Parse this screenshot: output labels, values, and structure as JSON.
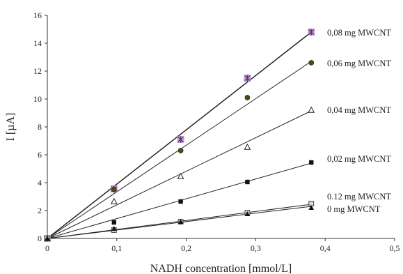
{
  "chart_data": {
    "type": "scatter",
    "xlabel": "NADH concentration [mmol/L]",
    "ylabel": "I [µA]",
    "xlim": [
      0,
      0.5
    ],
    "ylim": [
      0,
      16
    ],
    "xticks": [
      "0",
      "0,1",
      "0,2",
      "0,3",
      "0,4",
      "0,5"
    ],
    "yticks": [
      "0",
      "2",
      "4",
      "6",
      "8",
      "10",
      "12",
      "14",
      "16"
    ],
    "grid": false,
    "series": [
      {
        "name": "0,08 mg MWCNT",
        "marker": "star-square",
        "color": "#b58fc8",
        "line_width": 1.5,
        "x": [
          0,
          0.096,
          0.192,
          0.288,
          0.38
        ],
        "y": [
          0,
          3.55,
          7.1,
          11.5,
          14.8
        ],
        "fit_end": [
          0.38,
          14.8
        ]
      },
      {
        "name": "0,06 mg MWCNT",
        "marker": "circle",
        "color": "#4a4a1e",
        "line_width": 1,
        "x": [
          0,
          0.096,
          0.192,
          0.288,
          0.38
        ],
        "y": [
          0,
          3.5,
          6.3,
          10.1,
          12.6
        ],
        "fit_end": [
          0.38,
          12.7
        ]
      },
      {
        "name": "0,04 mg MWCNT",
        "marker": "triangle-open",
        "color": "#222222",
        "line_width": 1,
        "x": [
          0,
          0.096,
          0.192,
          0.288,
          0.38
        ],
        "y": [
          0,
          2.65,
          4.45,
          6.55,
          9.2
        ],
        "fit_end": [
          0.38,
          9.15
        ]
      },
      {
        "name": "0,02 mg MWCNT",
        "marker": "square",
        "color": "#111111",
        "line_width": 1,
        "x": [
          0,
          0.096,
          0.192,
          0.288,
          0.38
        ],
        "y": [
          0,
          1.15,
          2.65,
          4.05,
          5.45
        ],
        "fit_end": [
          0.38,
          5.4
        ]
      },
      {
        "name": "0.12 mg MWCNT",
        "marker": "square-open",
        "color": "#777777",
        "line_width": 1,
        "x": [
          0,
          0.096,
          0.192,
          0.288,
          0.38
        ],
        "y": [
          0,
          0.6,
          1.2,
          1.85,
          2.5
        ],
        "fit_end": [
          0.38,
          2.45
        ]
      },
      {
        "name": "0 mg  MWCNT",
        "marker": "triangle",
        "color": "#111111",
        "line_width": 1,
        "x": [
          0,
          0.096,
          0.192,
          0.288,
          0.38
        ],
        "y": [
          0,
          0.7,
          1.2,
          1.75,
          2.2
        ],
        "fit_end": [
          0.38,
          2.3
        ]
      }
    ],
    "legend": "right-of-lines"
  }
}
